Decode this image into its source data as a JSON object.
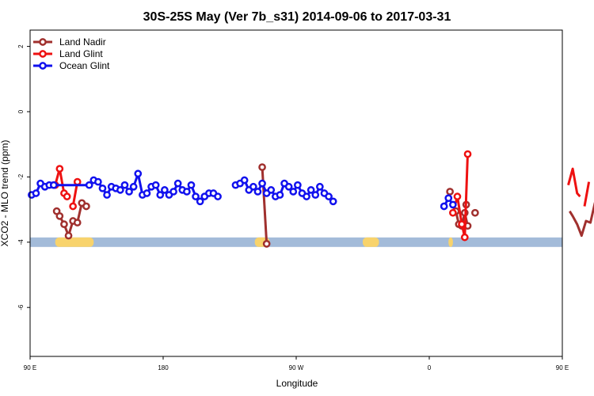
{
  "chart_data": {
    "type": "line",
    "title": "30S-25S May (Ver 7b_s31)   2014-09-06 to 2017-03-31",
    "xlabel": "Longitude",
    "ylabel": "XCO2 - MLO trend (ppm)",
    "xlim": [
      90,
      450
    ],
    "ylim": [
      -7.5,
      2.5
    ],
    "x_ticks": [
      {
        "value": 90,
        "label": "90 E"
      },
      {
        "value": 180,
        "label": "180"
      },
      {
        "value": 270,
        "label": "90 W"
      },
      {
        "value": 360,
        "label": "0"
      },
      {
        "value": 450,
        "label": "90 E"
      },
      {
        "value": 540,
        "label": "180"
      }
    ],
    "y_ticks": [
      {
        "value": 2,
        "label": "2"
      },
      {
        "value": 0,
        "label": "0"
      },
      {
        "value": -2,
        "label": "-2"
      },
      {
        "value": -4,
        "label": "-4"
      },
      {
        "value": -6,
        "label": "-6"
      }
    ],
    "legend_position": "top-left",
    "surface_band": {
      "y_center": -4.0,
      "ocean_color": "#a3bbd9",
      "land_color": "#f8d36c",
      "land_ranges": [
        [
          107,
          133
        ],
        [
          242,
          252
        ],
        [
          315,
          326
        ],
        [
          373,
          376
        ],
        [
          453,
          479
        ]
      ]
    },
    "series": [
      {
        "name": "Land Nadir",
        "color": "#a0302e",
        "segments": [
          {
            "x": [
              108,
              110,
              113,
              116,
              119,
              122,
              125,
              128
            ],
            "y": [
              -3.05,
              -3.2,
              -3.45,
              -3.8,
              -3.35,
              -3.4,
              -2.8,
              -2.9
            ]
          },
          {
            "x": [
              247,
              250
            ],
            "y": [
              -1.7,
              -4.05
            ]
          },
          {
            "x": [
              374
            ],
            "y": [
              -2.45
            ]
          },
          {
            "x": [
              385
            ],
            "y": [
              -2.85
            ]
          },
          {
            "x": [
              378,
              380,
              382,
              384,
              386
            ],
            "y": [
              -3.05,
              -3.45,
              -3.5,
              -3.1,
              -3.5
            ]
          },
          {
            "x": [
              391
            ],
            "y": [
              -3.1
            ]
          },
          {
            "x": [
              455,
              457,
              460,
              463,
              466,
              469,
              472,
              475
            ],
            "y": [
              -3.05,
              -3.2,
              -3.45,
              -3.8,
              -3.35,
              -3.4,
              -2.8,
              -2.9
            ]
          }
        ]
      },
      {
        "name": "Land Glint",
        "color": "#ee1111",
        "segments": [
          {
            "x": [
              107,
              110,
              113,
              115
            ],
            "y": [
              -2.25,
              -1.75,
              -2.5,
              -2.6
            ]
          },
          {
            "x": [
              119,
              122
            ],
            "y": [
              -2.9,
              -2.15
            ]
          },
          {
            "x": [
              376,
              379,
              382,
              384,
              386
            ],
            "y": [
              -3.1,
              -2.6,
              -3.45,
              -3.85,
              -1.3
            ]
          },
          {
            "x": [
              454,
              457,
              460,
              462
            ],
            "y": [
              -2.25,
              -1.75,
              -2.5,
              -2.6
            ]
          },
          {
            "x": [
              465,
              468
            ],
            "y": [
              -2.9,
              -2.15
            ]
          }
        ]
      },
      {
        "name": "Ocean Glint",
        "color": "#1111ee",
        "segments": [
          {
            "x": [
              91,
              94,
              97,
              100,
              103,
              106
            ],
            "y": [
              -2.55,
              -2.5,
              -2.2,
              -2.3,
              -2.25,
              -2.25
            ]
          },
          {
            "x": [
              106,
              130,
              133,
              136,
              139,
              142,
              145,
              148,
              151,
              154,
              157,
              160,
              163,
              166,
              169,
              172,
              175,
              178,
              181,
              184,
              187,
              190,
              193,
              196,
              199,
              202,
              205,
              208,
              211,
              214,
              217
            ],
            "y": [
              -2.25,
              -2.25,
              -2.1,
              -2.15,
              -2.35,
              -2.55,
              -2.3,
              -2.35,
              -2.4,
              -2.25,
              -2.45,
              -2.3,
              -1.9,
              -2.55,
              -2.5,
              -2.3,
              -2.25,
              -2.55,
              -2.4,
              -2.55,
              -2.45,
              -2.2,
              -2.4,
              -2.45,
              -2.25,
              -2.6,
              -2.75,
              -2.6,
              -2.5,
              -2.5,
              -2.6
            ]
          },
          {
            "x": [
              229,
              232,
              235,
              238,
              241,
              244,
              247,
              250,
              253,
              256,
              259,
              262,
              265,
              268,
              271,
              274,
              277,
              280,
              283,
              286,
              289,
              292,
              295
            ],
            "y": [
              -2.25,
              -2.2,
              -2.1,
              -2.4,
              -2.3,
              -2.45,
              -2.2,
              -2.5,
              -2.4,
              -2.6,
              -2.55,
              -2.2,
              -2.3,
              -2.45,
              -2.25,
              -2.5,
              -2.6,
              -2.4,
              -2.55,
              -2.3,
              -2.5,
              -2.6,
              -2.75
            ]
          },
          {
            "x": [
              370,
              373,
              376
            ],
            "y": [
              -2.9,
              -2.65,
              -2.85
            ]
          }
        ]
      }
    ]
  }
}
